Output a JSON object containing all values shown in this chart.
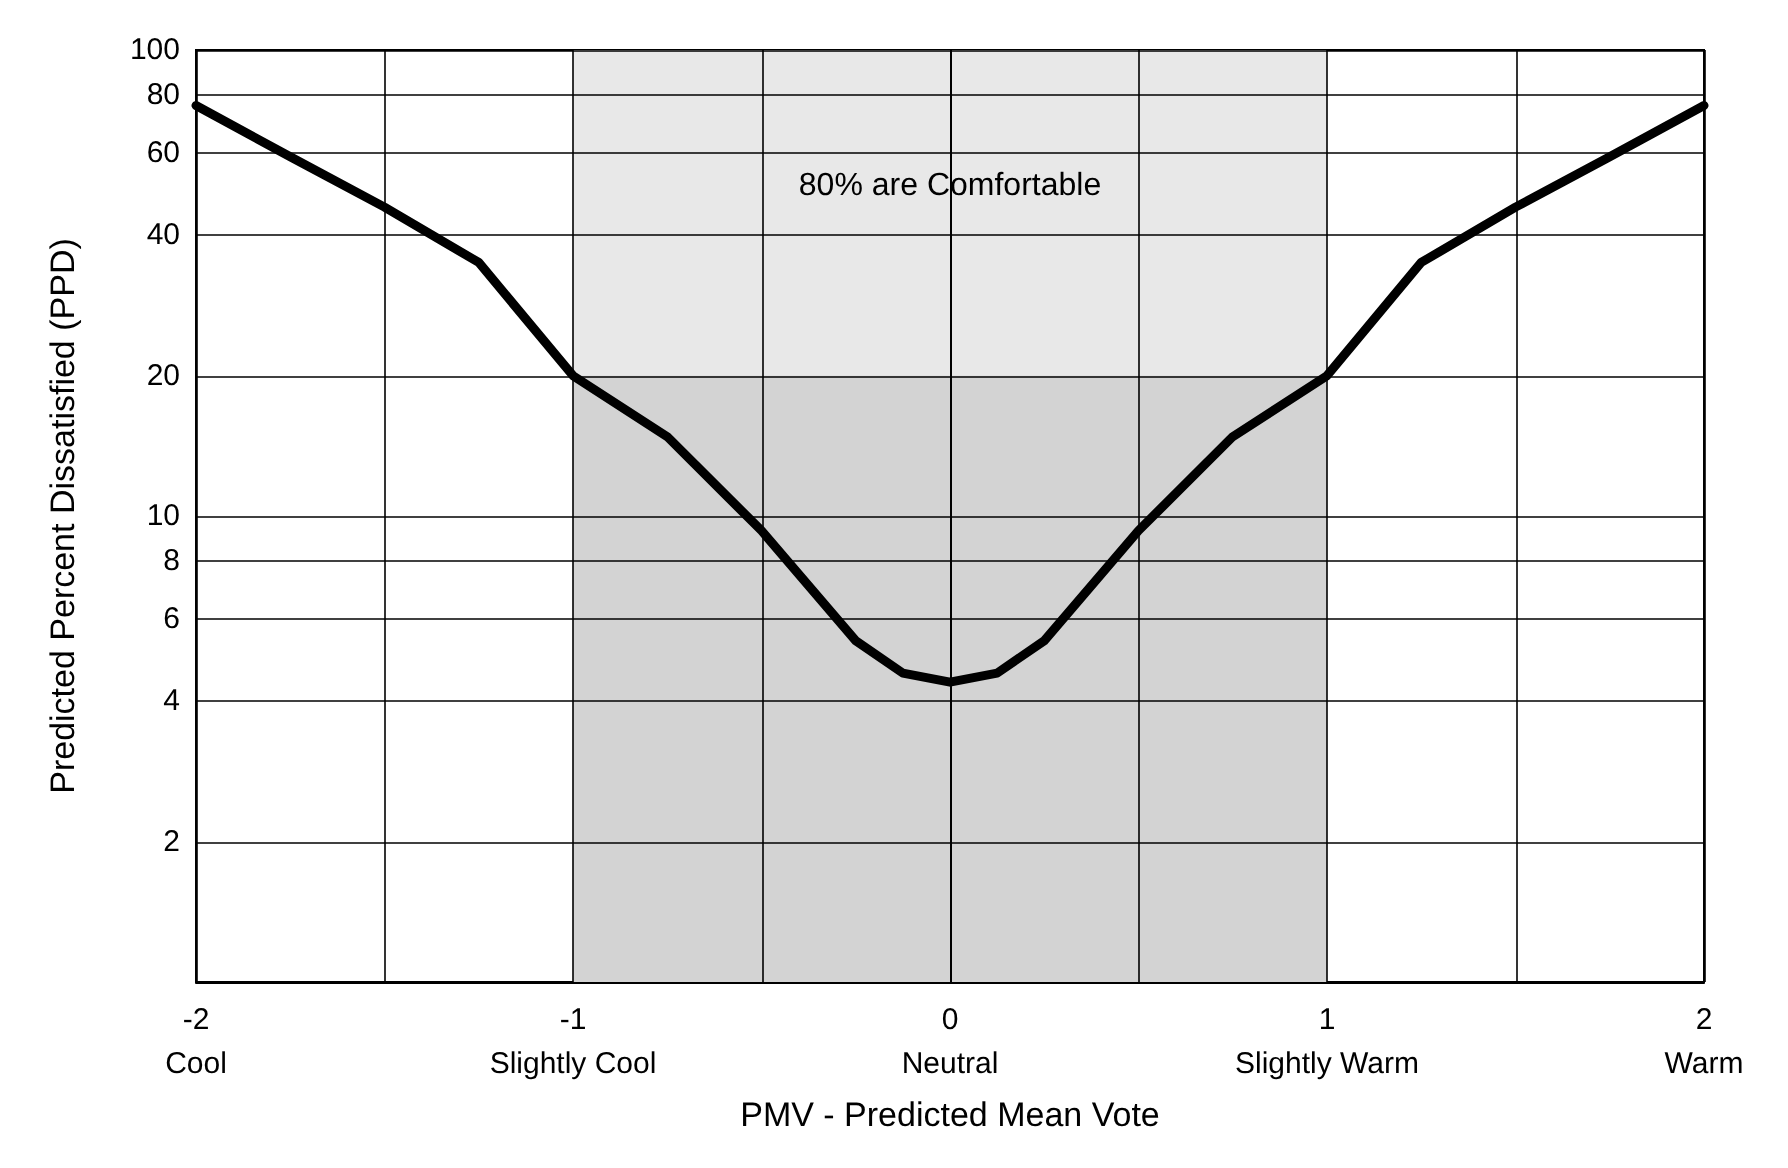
{
  "chart_data": {
    "type": "line",
    "xlabel": "PMV - Predicted Mean Vote",
    "ylabel": "Predicted Percent Dissatisfied (PPD)",
    "series": [
      {
        "type": "area",
        "color": "#d3d3d3",
        "x": [
          -1,
          1
        ],
        "values": [
          20,
          20
        ]
      },
      {
        "color": "#000000",
        "x": [
          -2,
          -1.75,
          -1.5,
          -1.25,
          -1,
          -0.75,
          -0.5,
          -0.25,
          -0.125,
          0,
          0.125,
          0.25,
          0.5,
          0.75,
          1,
          1.25,
          1.5,
          1.75,
          2
        ],
        "values": [
          76,
          59,
          46,
          35,
          20,
          14.8,
          9.3,
          5.4,
          4.6,
          4.4,
          4.6,
          5.4,
          9.3,
          14.8,
          20,
          35,
          46,
          59,
          76
        ]
      }
    ],
    "bands": [
      {
        "axis": "x",
        "from": -1,
        "to": 1,
        "label": "80% are Comfortable",
        "color": "#e8e8e8"
      }
    ],
    "xlim": [
      -2,
      2
    ],
    "xticks": [
      {
        "value": -2,
        "label": "-2\nCool"
      },
      {
        "value": -1.5,
        "label": null
      },
      {
        "value": -1,
        "label": "-1\nSlightly Cool"
      },
      {
        "value": -0.5,
        "label": null
      },
      {
        "value": 0,
        "label": "0\nNeutral"
      },
      {
        "value": 0.5,
        "label": null
      },
      {
        "value": 1,
        "label": "1\nSlightly Warm"
      },
      {
        "value": 1.5,
        "label": null
      },
      {
        "value": 2,
        "label": "2\nWarm"
      }
    ],
    "ylim": [
      1,
      100
    ],
    "yticks": [
      2,
      4,
      6,
      8,
      10,
      20,
      40,
      60,
      80,
      100
    ],
    "log": true,
    "grid": true,
    "marker": "none",
    "line_style": "solid"
  }
}
